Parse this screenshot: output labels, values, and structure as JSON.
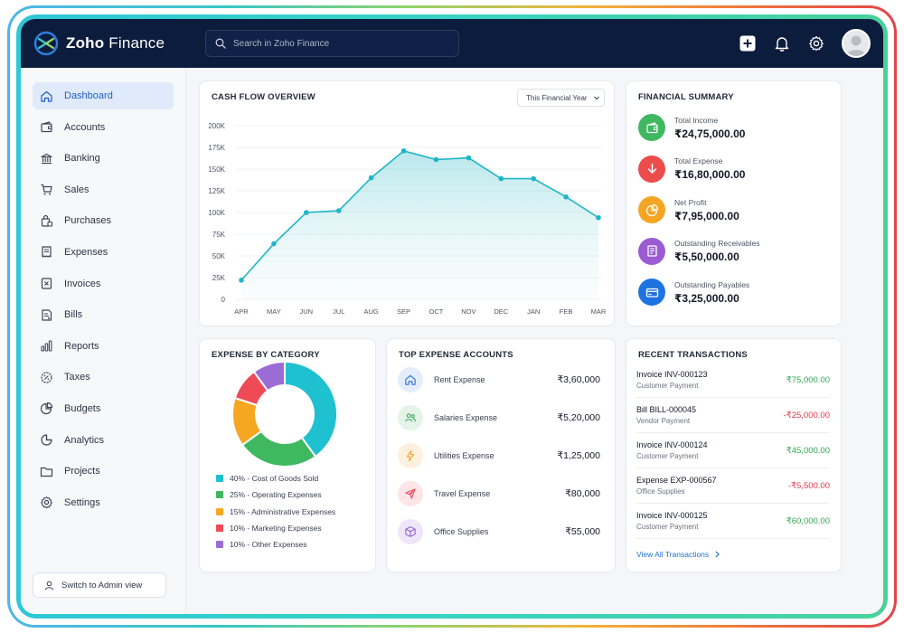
{
  "app": {
    "brand_name": "Zoho",
    "brand_suffix": "Finance"
  },
  "search": {
    "placeholder": "Search in Zoho Finance"
  },
  "header": {
    "icons": [
      "plus-icon",
      "bell-icon",
      "gear-icon"
    ]
  },
  "sidebar": {
    "items": [
      {
        "label": "Dashboard",
        "icon": "home-icon",
        "active": true
      },
      {
        "label": "Accounts",
        "icon": "wallet-icon"
      },
      {
        "label": "Banking",
        "icon": "bank-icon"
      },
      {
        "label": "Sales",
        "icon": "cart-icon"
      },
      {
        "label": "Purchases",
        "icon": "bag-icon"
      },
      {
        "label": "Expenses",
        "icon": "receipt-icon"
      },
      {
        "label": "Invoices",
        "icon": "invoice-icon"
      },
      {
        "label": "Bills",
        "icon": "bill-icon"
      },
      {
        "label": "Reports",
        "icon": "bar-chart-icon"
      },
      {
        "label": "Taxes",
        "icon": "tax-icon"
      },
      {
        "label": "Budgets",
        "icon": "pie-icon"
      },
      {
        "label": "Analytics",
        "icon": "analytics-icon"
      },
      {
        "label": "Projects",
        "icon": "folder-icon"
      },
      {
        "label": "Settings",
        "icon": "gear-icon"
      }
    ],
    "switch_label": "Switch to Admin view"
  },
  "cashflow": {
    "title": "CASH FLOW OVERVIEW",
    "period": "This Financial Year",
    "chart_data": {
      "type": "area",
      "categories": [
        "APR",
        "MAY",
        "JUN",
        "JUL",
        "AUG",
        "SEP",
        "OCT",
        "NOV",
        "DEC",
        "JAN",
        "FEB",
        "MAR"
      ],
      "values": [
        22000,
        64000,
        100000,
        102000,
        140000,
        171000,
        161000,
        163000,
        139000,
        139000,
        118000,
        94000
      ],
      "yticks": [
        "0",
        "25K",
        "50K",
        "75K",
        "100K",
        "125K",
        "150K",
        "175K",
        "200K"
      ],
      "ylim": [
        0,
        200000
      ],
      "grid": true,
      "line_color": "#1eb6c6"
    }
  },
  "summary": {
    "title": "FINANCIAL SUMMARY",
    "items": [
      {
        "label": "Total Income",
        "value": "₹24,75,000.00",
        "color": "#3fb85f",
        "icon": "wallet-icon"
      },
      {
        "label": "Total Expense",
        "value": "₹16,80,000.00",
        "color": "#ec4c4c",
        "icon": "arrow-down-icon"
      },
      {
        "label": "Net Profit",
        "value": "₹7,95,000.00",
        "color": "#f4a623",
        "icon": "pie-icon"
      },
      {
        "label": "Outstanding Receivables",
        "value": "₹5,50,000.00",
        "color": "#9b5cd1",
        "icon": "document-icon"
      },
      {
        "label": "Outstanding Payables",
        "value": "₹3,25,000.00",
        "color": "#1f73e0",
        "icon": "card-icon"
      }
    ]
  },
  "expense_category": {
    "title": "EXPENSE BY CATEGORY",
    "chart_data": {
      "type": "pie",
      "donut": true,
      "slices": [
        {
          "label": "40% - Cost of Goods Sold",
          "value": 40,
          "color": "#1fc1d1"
        },
        {
          "label": "25% - Operating Expenses",
          "value": 25,
          "color": "#3fb85f"
        },
        {
          "label": "15% - Administrative Expenses",
          "value": 15,
          "color": "#f6a623"
        },
        {
          "label": "10% - Marketing Expenses",
          "value": 10,
          "color": "#ee4b57"
        },
        {
          "label": "10% - Other Expenses",
          "value": 10,
          "color": "#9b6bd6"
        }
      ]
    }
  },
  "top_accounts": {
    "title": "TOP EXPENSE ACCOUNTS",
    "items": [
      {
        "name": "Rent Expense",
        "amount": "₹3,60,000",
        "icon": "home-icon",
        "bg": "#e3edfb",
        "fg": "#2b6fd6"
      },
      {
        "name": "Salaries Expense",
        "amount": "₹5,20,000",
        "icon": "users-icon",
        "bg": "#e4f4e8",
        "fg": "#3aa95a"
      },
      {
        "name": "Utilities Expense",
        "amount": "₹1,25,000",
        "icon": "bolt-icon",
        "bg": "#fdf0de",
        "fg": "#f2a12b"
      },
      {
        "name": "Travel Expense",
        "amount": "₹80,000",
        "icon": "plane-icon",
        "bg": "#fde5e7",
        "fg": "#e2475a"
      },
      {
        "name": "Office Supplies",
        "amount": "₹55,000",
        "icon": "box-icon",
        "bg": "#efe6fa",
        "fg": "#8c58cf"
      }
    ]
  },
  "transactions": {
    "title": "RECENT TRANSACTIONS",
    "items": [
      {
        "title": "Invoice INV-000123",
        "sub": "Customer Payment",
        "amount": "₹75,000.00",
        "color": "#2fa84f"
      },
      {
        "title": "Bill BILL-000045",
        "sub": "Vendor Payment",
        "amount": "-₹25,000.00",
        "color": "#e2394a"
      },
      {
        "title": "Invoice INV-000124",
        "sub": "Customer Payment",
        "amount": "₹45,000.00",
        "color": "#2fa84f"
      },
      {
        "title": "Expense EXP-000567",
        "sub": "Office Supplies",
        "amount": "-₹5,500.00",
        "color": "#e2394a"
      },
      {
        "title": "Invoice INV-000125",
        "sub": "Customer Payment",
        "amount": "₹60,000.00",
        "color": "#2fa84f"
      }
    ],
    "view_all": "View All Transactions"
  }
}
